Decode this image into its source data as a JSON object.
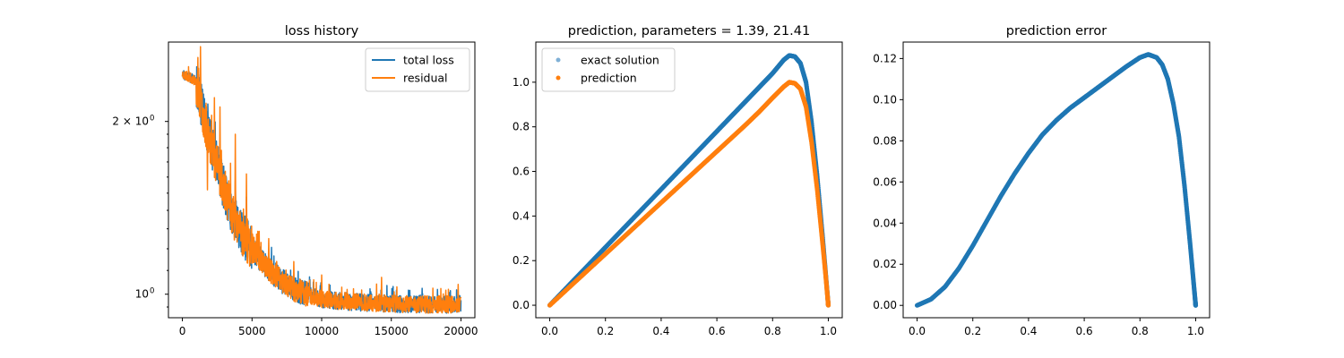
{
  "colors": {
    "blue": "#1f77b4",
    "orange": "#ff7f0e",
    "blue_light": "#7fb0d6"
  },
  "chart_data": [
    {
      "type": "line",
      "title": "loss history",
      "xlabel": "",
      "ylabel": "",
      "xlim": [
        -1000,
        21000
      ],
      "ylim": [
        0.91,
        2.75
      ],
      "yscale": "log",
      "x_ticks": [
        0,
        5000,
        10000,
        15000,
        20000
      ],
      "x_tick_labels": [
        "0",
        "5000",
        "10000",
        "15000",
        "20000"
      ],
      "y_major_ticks": [
        1,
        2
      ],
      "y_major_tick_labels": [
        "10",
        "10"
      ],
      "y_major_tick_exponents": [
        "0",
        "0"
      ],
      "y_major_tick_prefixes": [
        "",
        "2 × "
      ],
      "y_minor_ticks": [
        0.95,
        1.1,
        1.2,
        1.3,
        1.4,
        1.5,
        1.6,
        1.7,
        1.8,
        1.9
      ],
      "legend": "top-right",
      "series": [
        {
          "name": "total loss",
          "color": "#1f77b4",
          "trend": [
            [
              0,
              2.42
            ],
            [
              300,
              2.4
            ],
            [
              600,
              2.38
            ],
            [
              900,
              2.36
            ],
            [
              1200,
              2.25
            ],
            [
              1500,
              2.05
            ],
            [
              2000,
              1.85
            ],
            [
              2500,
              1.68
            ],
            [
              3000,
              1.52
            ],
            [
              3500,
              1.4
            ],
            [
              4000,
              1.31
            ],
            [
              5000,
              1.2
            ],
            [
              6000,
              1.12
            ],
            [
              7000,
              1.06
            ],
            [
              8000,
              1.02
            ],
            [
              9000,
              1.0
            ],
            [
              10000,
              0.98
            ],
            [
              12000,
              0.97
            ],
            [
              14000,
              0.965
            ],
            [
              16000,
              0.96
            ],
            [
              18000,
              0.96
            ],
            [
              20000,
              0.96
            ]
          ]
        },
        {
          "name": "residual",
          "color": "#ff7f0e",
          "trend": [
            [
              0,
              2.42
            ],
            [
              300,
              2.4
            ],
            [
              600,
              2.38
            ],
            [
              900,
              2.36
            ],
            [
              1200,
              2.25
            ],
            [
              1500,
              2.05
            ],
            [
              2000,
              1.85
            ],
            [
              2500,
              1.68
            ],
            [
              3000,
              1.52
            ],
            [
              3500,
              1.4
            ],
            [
              4000,
              1.31
            ],
            [
              5000,
              1.2
            ],
            [
              6000,
              1.12
            ],
            [
              7000,
              1.06
            ],
            [
              8000,
              1.02
            ],
            [
              9000,
              1.0
            ],
            [
              10000,
              0.98
            ],
            [
              12000,
              0.97
            ],
            [
              14000,
              0.965
            ],
            [
              16000,
              0.96
            ],
            [
              18000,
              0.96
            ],
            [
              20000,
              0.96
            ]
          ],
          "spikes": [
            [
              1300,
              2.7
            ],
            [
              2300,
              2.2
            ],
            [
              2700,
              2.12
            ],
            [
              3800,
              1.9
            ],
            [
              2100,
              2.05
            ],
            [
              1800,
              1.52
            ],
            [
              4600,
              1.62
            ],
            [
              3200,
              1.42
            ],
            [
              10000,
              1.08
            ],
            [
              14300,
              1.07
            ],
            [
              19800,
              1.04
            ],
            [
              6200,
              1.25
            ],
            [
              8000,
              1.14
            ]
          ]
        }
      ]
    },
    {
      "type": "scatter",
      "title": "prediction, parameters = 1.39, 21.41",
      "xlabel": "",
      "ylabel": "",
      "xlim": [
        -0.05,
        1.05
      ],
      "ylim": [
        -0.056,
        1.18
      ],
      "x_ticks": [
        0.0,
        0.2,
        0.4,
        0.6,
        0.8,
        1.0
      ],
      "x_tick_labels": [
        "0.0",
        "0.2",
        "0.4",
        "0.6",
        "0.8",
        "1.0"
      ],
      "y_ticks": [
        0.0,
        0.2,
        0.4,
        0.6,
        0.8,
        1.0
      ],
      "y_tick_labels": [
        "0.0",
        "0.2",
        "0.4",
        "0.6",
        "0.8",
        "1.0"
      ],
      "legend": "top-left",
      "series": [
        {
          "name": "exact solution",
          "color": "#1f77b4",
          "points": [
            [
              0.0,
              0.0
            ],
            [
              0.1,
              0.13
            ],
            [
              0.2,
              0.26
            ],
            [
              0.3,
              0.39
            ],
            [
              0.4,
              0.52
            ],
            [
              0.5,
              0.65
            ],
            [
              0.6,
              0.78
            ],
            [
              0.7,
              0.91
            ],
            [
              0.75,
              0.975
            ],
            [
              0.8,
              1.04
            ],
            [
              0.84,
              1.1
            ],
            [
              0.86,
              1.12
            ],
            [
              0.88,
              1.115
            ],
            [
              0.9,
              1.085
            ],
            [
              0.92,
              1.0
            ],
            [
              0.94,
              0.82
            ],
            [
              0.96,
              0.58
            ],
            [
              0.98,
              0.3
            ],
            [
              0.99,
              0.15
            ],
            [
              1.0,
              0.0
            ]
          ]
        },
        {
          "name": "prediction",
          "color": "#ff7f0e",
          "points": [
            [
              0.0,
              0.0
            ],
            [
              0.1,
              0.115
            ],
            [
              0.2,
              0.23
            ],
            [
              0.3,
              0.345
            ],
            [
              0.4,
              0.46
            ],
            [
              0.5,
              0.575
            ],
            [
              0.6,
              0.69
            ],
            [
              0.7,
              0.805
            ],
            [
              0.75,
              0.865
            ],
            [
              0.8,
              0.93
            ],
            [
              0.84,
              0.98
            ],
            [
              0.86,
              1.0
            ],
            [
              0.88,
              0.995
            ],
            [
              0.9,
              0.97
            ],
            [
              0.92,
              0.89
            ],
            [
              0.94,
              0.73
            ],
            [
              0.96,
              0.52
            ],
            [
              0.98,
              0.27
            ],
            [
              0.99,
              0.14
            ],
            [
              1.0,
              0.0
            ]
          ]
        }
      ]
    },
    {
      "type": "scatter",
      "title": "prediction error",
      "xlabel": "",
      "ylabel": "",
      "xlim": [
        -0.05,
        1.05
      ],
      "ylim": [
        -0.006,
        0.128
      ],
      "x_ticks": [
        0.0,
        0.2,
        0.4,
        0.6,
        0.8,
        1.0
      ],
      "x_tick_labels": [
        "0.0",
        "0.2",
        "0.4",
        "0.6",
        "0.8",
        "1.0"
      ],
      "y_ticks": [
        0.0,
        0.02,
        0.04,
        0.06,
        0.08,
        0.1,
        0.12
      ],
      "y_tick_labels": [
        "0.00",
        "0.02",
        "0.04",
        "0.06",
        "0.08",
        "0.10",
        "0.12"
      ],
      "series": [
        {
          "color": "#1f77b4",
          "points": [
            [
              0.0,
              0.0
            ],
            [
              0.05,
              0.003
            ],
            [
              0.1,
              0.009
            ],
            [
              0.15,
              0.018
            ],
            [
              0.2,
              0.029
            ],
            [
              0.25,
              0.041
            ],
            [
              0.3,
              0.053
            ],
            [
              0.35,
              0.064
            ],
            [
              0.4,
              0.074
            ],
            [
              0.45,
              0.083
            ],
            [
              0.5,
              0.09
            ],
            [
              0.55,
              0.096
            ],
            [
              0.6,
              0.101
            ],
            [
              0.65,
              0.106
            ],
            [
              0.7,
              0.111
            ],
            [
              0.75,
              0.116
            ],
            [
              0.8,
              0.1205
            ],
            [
              0.83,
              0.122
            ],
            [
              0.86,
              0.1205
            ],
            [
              0.88,
              0.117
            ],
            [
              0.9,
              0.11
            ],
            [
              0.92,
              0.098
            ],
            [
              0.94,
              0.082
            ],
            [
              0.96,
              0.058
            ],
            [
              0.98,
              0.03
            ],
            [
              0.99,
              0.015
            ],
            [
              1.0,
              0.0
            ]
          ]
        }
      ]
    }
  ]
}
